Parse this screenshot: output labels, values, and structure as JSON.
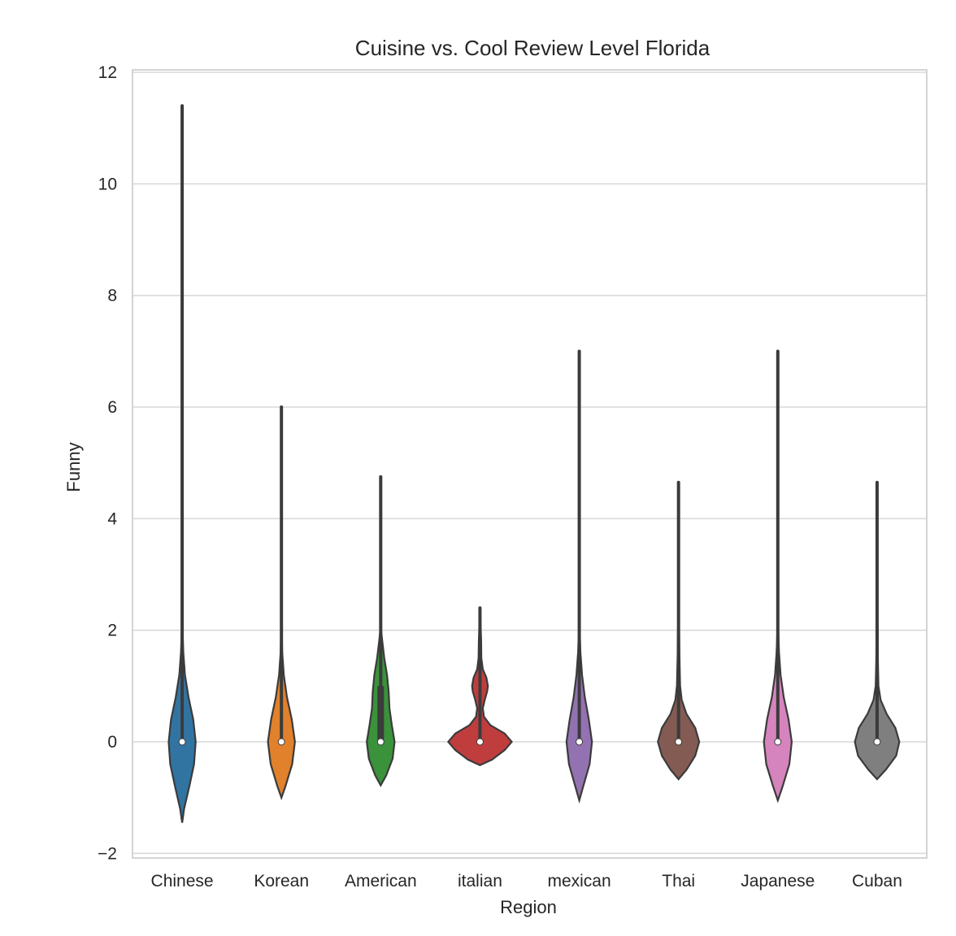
{
  "chart_data": {
    "type": "violin",
    "title": "Cuisine vs. Cool Review Level Florida",
    "xlabel": "Region",
    "ylabel": "Funny",
    "ylim": [
      -2.1,
      12.0
    ],
    "yticks": [
      -2,
      0,
      2,
      4,
      6,
      8,
      10,
      12
    ],
    "ytick_labels": [
      "−2",
      "0",
      "2",
      "4",
      "6",
      "8",
      "10",
      "12"
    ],
    "grid": "horizontal",
    "categories": [
      "Chinese",
      "Korean",
      "American",
      "italian",
      "mexican",
      "Thai",
      "Japanese",
      "Cuban"
    ],
    "colors": [
      "#3274a1",
      "#e1812c",
      "#3a923a",
      "#c03d3e",
      "#9372b2",
      "#845b53",
      "#d684bd",
      "#7f7f7f"
    ],
    "violins": [
      {
        "category": "Chinese",
        "min": 0,
        "max": 11.4,
        "median": 0,
        "q1": 0,
        "q3": 0,
        "shape": [
          [
            -1.45,
            0
          ],
          [
            -1.2,
            0.05
          ],
          [
            -0.8,
            0.18
          ],
          [
            -0.4,
            0.3
          ],
          [
            0,
            0.34
          ],
          [
            0.4,
            0.28
          ],
          [
            0.8,
            0.16
          ],
          [
            1.2,
            0.07
          ],
          [
            1.6,
            0.03
          ],
          [
            2.0,
            0.01
          ],
          [
            2.5,
            0
          ]
        ]
      },
      {
        "category": "Korean",
        "min": 0,
        "max": 6.0,
        "median": 0,
        "q1": 0,
        "q3": 0,
        "shape": [
          [
            -1.0,
            0
          ],
          [
            -0.8,
            0.1
          ],
          [
            -0.4,
            0.27
          ],
          [
            0,
            0.34
          ],
          [
            0.4,
            0.26
          ],
          [
            0.8,
            0.14
          ],
          [
            1.2,
            0.06
          ],
          [
            1.6,
            0.02
          ],
          [
            2.0,
            0.005
          ],
          [
            2.4,
            0
          ]
        ]
      },
      {
        "category": "American",
        "min": 0,
        "max": 4.75,
        "median": 0,
        "q1": 0,
        "q3": 1,
        "shape": [
          [
            -0.78,
            0
          ],
          [
            -0.6,
            0.14
          ],
          [
            -0.3,
            0.3
          ],
          [
            0,
            0.35
          ],
          [
            0.3,
            0.28
          ],
          [
            0.6,
            0.22
          ],
          [
            0.9,
            0.2
          ],
          [
            1.2,
            0.16
          ],
          [
            1.5,
            0.09
          ],
          [
            1.8,
            0.04
          ],
          [
            2.0,
            0.01
          ],
          [
            2.3,
            0
          ]
        ]
      },
      {
        "category": "italian",
        "min": 0,
        "max": 2.4,
        "median": 0,
        "q1": 0,
        "q3": 0,
        "shape": [
          [
            -0.42,
            0
          ],
          [
            -0.32,
            0.3
          ],
          [
            -0.15,
            0.62
          ],
          [
            0,
            0.8
          ],
          [
            0.15,
            0.62
          ],
          [
            0.3,
            0.26
          ],
          [
            0.45,
            0.1
          ],
          [
            0.6,
            0.07
          ],
          [
            0.75,
            0.12
          ],
          [
            0.9,
            0.18
          ],
          [
            1.0,
            0.2
          ],
          [
            1.15,
            0.16
          ],
          [
            1.3,
            0.07
          ],
          [
            1.5,
            0.035
          ],
          [
            1.8,
            0.03
          ],
          [
            2.1,
            0.015
          ],
          [
            2.4,
            0
          ]
        ]
      },
      {
        "category": "mexican",
        "min": 0,
        "max": 7.0,
        "median": 0,
        "q1": 0,
        "q3": 0,
        "shape": [
          [
            -1.05,
            0
          ],
          [
            -0.8,
            0.1
          ],
          [
            -0.4,
            0.26
          ],
          [
            0,
            0.32
          ],
          [
            0.4,
            0.24
          ],
          [
            0.8,
            0.14
          ],
          [
            1.2,
            0.07
          ],
          [
            1.6,
            0.03
          ],
          [
            2.0,
            0.01
          ],
          [
            2.4,
            0
          ]
        ]
      },
      {
        "category": "Thai",
        "min": 0,
        "max": 4.65,
        "median": 0,
        "q1": 0,
        "q3": 0,
        "shape": [
          [
            -0.67,
            0
          ],
          [
            -0.5,
            0.2
          ],
          [
            -0.25,
            0.42
          ],
          [
            0,
            0.52
          ],
          [
            0.25,
            0.42
          ],
          [
            0.5,
            0.2
          ],
          [
            0.75,
            0.08
          ],
          [
            1.0,
            0.04
          ],
          [
            1.5,
            0.025
          ],
          [
            2.0,
            0.015
          ],
          [
            2.5,
            0
          ]
        ]
      },
      {
        "category": "Japanese",
        "min": 0,
        "max": 7.0,
        "median": 0,
        "q1": 0,
        "q3": 0,
        "shape": [
          [
            -1.05,
            0
          ],
          [
            -0.8,
            0.12
          ],
          [
            -0.4,
            0.29
          ],
          [
            0,
            0.35
          ],
          [
            0.4,
            0.27
          ],
          [
            0.8,
            0.15
          ],
          [
            1.2,
            0.07
          ],
          [
            1.6,
            0.03
          ],
          [
            2.0,
            0.01
          ],
          [
            2.4,
            0
          ]
        ]
      },
      {
        "category": "Cuban",
        "min": 0,
        "max": 4.65,
        "median": 0,
        "q1": 0,
        "q3": 0,
        "shape": [
          [
            -0.67,
            0
          ],
          [
            -0.5,
            0.22
          ],
          [
            -0.25,
            0.48
          ],
          [
            0,
            0.56
          ],
          [
            0.25,
            0.46
          ],
          [
            0.5,
            0.24
          ],
          [
            0.75,
            0.09
          ],
          [
            1.0,
            0.035
          ],
          [
            1.5,
            0.02
          ],
          [
            2.0,
            0.015
          ],
          [
            2.5,
            0
          ]
        ]
      }
    ]
  }
}
